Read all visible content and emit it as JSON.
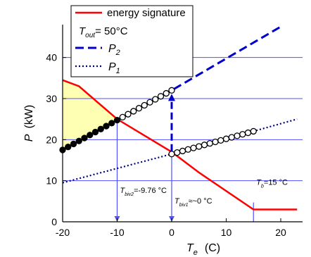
{
  "chart_data": {
    "type": "line",
    "xlabel_main": "T",
    "xlabel_sub": "e",
    "xlabel_unit": "(C)",
    "ylabel_main": "P",
    "ylabel_unit": "(kW)",
    "xlim": [
      -20,
      24
    ],
    "ylim": [
      0,
      48
    ],
    "x_ticks": [
      -20,
      -10,
      0,
      10,
      20
    ],
    "y_ticks": [
      0,
      10,
      20,
      30,
      40
    ],
    "grid": "horizontal",
    "colors": {
      "energy": "#ff0000",
      "p2": "#0000cc",
      "p1": "#000080",
      "grid": "#5050ff",
      "shade": "#ffffb3",
      "marker_fill": "#ffffff",
      "marker_fill_dark": "#000000"
    },
    "series": [
      {
        "name": "energy signature",
        "style": "solid",
        "x": [
          -20,
          -17,
          -10,
          0,
          5,
          15,
          16,
          23
        ],
        "y": [
          34.5,
          33.0,
          25.0,
          17.0,
          12.0,
          3.0,
          3.0,
          3.0
        ]
      },
      {
        "name": "P",
        "sub": "2",
        "style": "dashed",
        "x": [
          -20,
          0,
          20
        ],
        "y": [
          17.5,
          32.0,
          47.5
        ]
      },
      {
        "name": "P",
        "sub": "1",
        "style": "dotted",
        "x": [
          -20,
          0,
          23
        ],
        "y": [
          9.5,
          16.5,
          25.0
        ]
      }
    ],
    "marker_sets": [
      {
        "x_start": -20,
        "x_end": -10,
        "step": 1,
        "series_index": 1,
        "fill": "dark"
      },
      {
        "x_start": -9,
        "x_end": 0,
        "step": 1,
        "series_index": 1,
        "fill": "light"
      },
      {
        "x_start": 0,
        "x_end": 15,
        "step": 1,
        "series_index": 2,
        "fill": "light"
      }
    ],
    "shaded_region": {
      "x": [
        -20,
        -10
      ],
      "upper_series_index": 0,
      "lower_series_index": 1
    },
    "arrow": {
      "x": 0,
      "y_from": 16.5,
      "y_to": 32.0
    },
    "vlines": [
      {
        "x": -10,
        "label_main": "T",
        "label_sub": "biv2",
        "label_rest": "=-9.76 °C",
        "label_y": 7
      },
      {
        "x": 0,
        "label_main": "T",
        "label_sub": "biv1",
        "label_rest": "≈~0 °C",
        "label_y": 4.5
      },
      {
        "x": 15,
        "label_main": "T",
        "label_sub": "b",
        "label_rest": "=15 °C",
        "label_y": 9
      }
    ],
    "legend": {
      "placement": "top-left",
      "entries": [
        {
          "text": "energy signature",
          "style": "solid"
        },
        {
          "text": "T",
          "sub": "out",
          "rest": "= 50°C",
          "style": "none"
        },
        {
          "text": "P",
          "sub": "2",
          "style": "dashed"
        },
        {
          "text": "P",
          "sub": "1",
          "style": "dotted"
        }
      ]
    }
  }
}
